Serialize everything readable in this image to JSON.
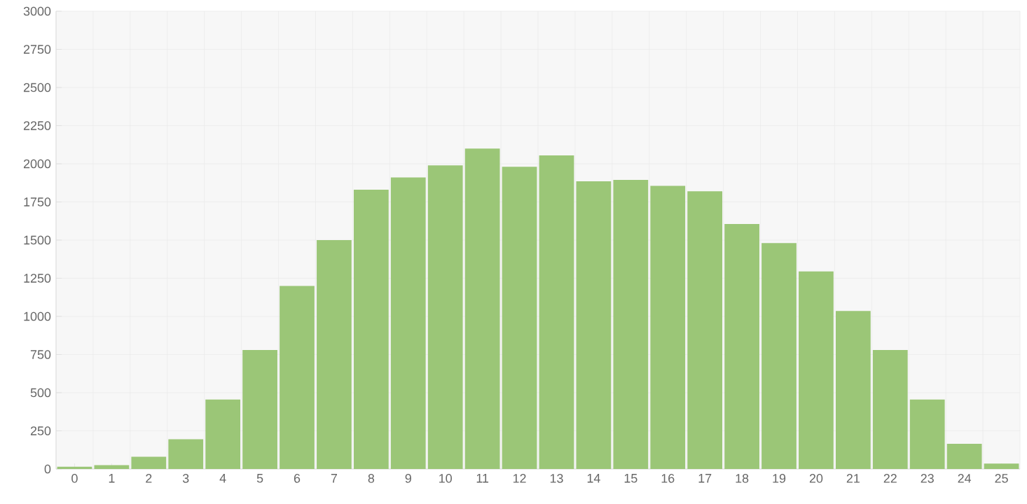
{
  "chart_data": {
    "type": "bar",
    "categories": [
      "0",
      "1",
      "2",
      "3",
      "4",
      "5",
      "6",
      "7",
      "8",
      "9",
      "10",
      "11",
      "12",
      "13",
      "14",
      "15",
      "16",
      "17",
      "18",
      "19",
      "20",
      "21",
      "22",
      "23",
      "24",
      "25"
    ],
    "values": [
      15,
      25,
      80,
      195,
      455,
      780,
      1200,
      1500,
      1830,
      1910,
      1990,
      2100,
      1980,
      2055,
      1885,
      1895,
      1855,
      1820,
      1605,
      1480,
      1295,
      1035,
      780,
      455,
      165,
      35
    ],
    "color": "#9bc677",
    "ylim": [
      0,
      3000
    ],
    "yticks": [
      0,
      250,
      500,
      750,
      1000,
      1250,
      1500,
      1750,
      2000,
      2250,
      2500,
      2750,
      3000
    ],
    "grid": true
  }
}
